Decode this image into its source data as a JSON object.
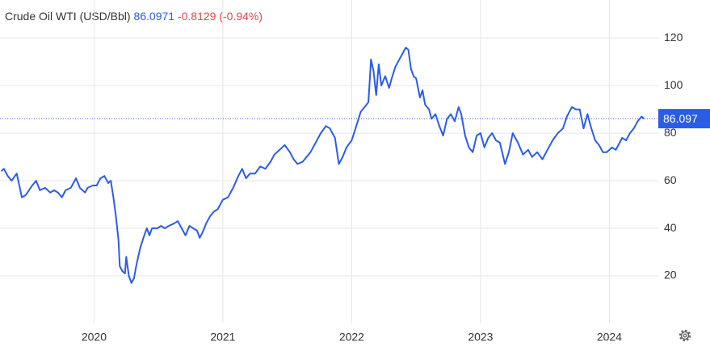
{
  "chart_data": {
    "type": "line",
    "title": "Crude Oil WTI (USD/Bbl)",
    "price": 86.0971,
    "change": -0.8129,
    "change_pct": {
      "value": -0.94,
      "label": "(-0.94%)"
    },
    "price_tag": {
      "value": 86.0971,
      "label": "86.097"
    },
    "color": "#2b5ce6",
    "x": [
      2019.28,
      2019.3,
      2019.33,
      2019.36,
      2019.4,
      2019.44,
      2019.47,
      2019.52,
      2019.55,
      2019.58,
      2019.62,
      2019.66,
      2019.69,
      2019.72,
      2019.75,
      2019.78,
      2019.82,
      2019.86,
      2019.89,
      2019.93,
      2019.95,
      2019.99,
      2020.02,
      2020.05,
      2020.08,
      2020.11,
      2020.13,
      2020.15,
      2020.17,
      2020.19,
      2020.2,
      2020.22,
      2020.24,
      2020.25,
      2020.27,
      2020.29,
      2020.31,
      2020.33,
      2020.36,
      2020.39,
      2020.41,
      2020.43,
      2020.45,
      2020.49,
      2020.52,
      2020.55,
      2020.58,
      2020.62,
      2020.65,
      2020.68,
      2020.71,
      2020.74,
      2020.77,
      2020.8,
      2020.82,
      2020.84,
      2020.87,
      2020.9,
      2020.93,
      2020.96,
      2021.0,
      2021.04,
      2021.08,
      2021.12,
      2021.15,
      2021.18,
      2021.21,
      2021.25,
      2021.29,
      2021.33,
      2021.37,
      2021.4,
      2021.44,
      2021.48,
      2021.52,
      2021.55,
      2021.58,
      2021.62,
      2021.65,
      2021.68,
      2021.72,
      2021.76,
      2021.8,
      2021.83,
      2021.87,
      2021.9,
      2021.93,
      2021.96,
      2022.0,
      2022.03,
      2022.07,
      2022.1,
      2022.13,
      2022.15,
      2022.17,
      2022.19,
      2022.21,
      2022.23,
      2022.26,
      2022.29,
      2022.31,
      2022.34,
      2022.37,
      2022.4,
      2022.42,
      2022.44,
      2022.46,
      2022.48,
      2022.5,
      2022.53,
      2022.55,
      2022.57,
      2022.6,
      2022.62,
      2022.65,
      2022.68,
      2022.71,
      2022.74,
      2022.77,
      2022.8,
      2022.83,
      2022.85,
      2022.88,
      2022.91,
      2022.94,
      2022.97,
      2023.0,
      2023.03,
      2023.06,
      2023.09,
      2023.12,
      2023.15,
      2023.19,
      2023.22,
      2023.25,
      2023.29,
      2023.33,
      2023.37,
      2023.4,
      2023.44,
      2023.48,
      2023.52,
      2023.56,
      2023.6,
      2023.64,
      2023.67,
      2023.71,
      2023.74,
      2023.77,
      2023.8,
      2023.83,
      2023.86,
      2023.89,
      2023.92,
      2023.95,
      2023.98,
      2024.02,
      2024.05,
      2024.08,
      2024.1,
      2024.13,
      2024.16,
      2024.19,
      2024.22,
      2024.25,
      2024.27
    ],
    "values": [
      64,
      65,
      62,
      60,
      63,
      53,
      54,
      58,
      60,
      56,
      57,
      55,
      56,
      55,
      53,
      56,
      57,
      61,
      57,
      55,
      57,
      58,
      58,
      61,
      62,
      59,
      60,
      53,
      45,
      35,
      24,
      22,
      21,
      28,
      20,
      17,
      19,
      25,
      32,
      37,
      40,
      37,
      40,
      40,
      41,
      40,
      41,
      42,
      43,
      40,
      37,
      41,
      40,
      39,
      36,
      38,
      42,
      45,
      47,
      48,
      52,
      53,
      57,
      62,
      65,
      61,
      63,
      63,
      66,
      65,
      68,
      71,
      73,
      75,
      72,
      69,
      67,
      68,
      70,
      72,
      76,
      80,
      83,
      82,
      78,
      67,
      70,
      74,
      77,
      82,
      89,
      91,
      93,
      111,
      106,
      96,
      109,
      100,
      104,
      99,
      103,
      108,
      111,
      114,
      116,
      115,
      107,
      104,
      103,
      95,
      98,
      92,
      90,
      86,
      88,
      83,
      79,
      86,
      88,
      85,
      91,
      88,
      79,
      74,
      72,
      79,
      80,
      74,
      78,
      80,
      77,
      76,
      67,
      72,
      80,
      76,
      71,
      73,
      70,
      72,
      69,
      73,
      77,
      80,
      82,
      87,
      91,
      90,
      90,
      82,
      88,
      82,
      77,
      75,
      72,
      72,
      74,
      73,
      76,
      78,
      77,
      80,
      82,
      85,
      87,
      86.0971
    ],
    "xlim": [
      2019.27,
      2024.38
    ],
    "xticks": [
      2020,
      2021,
      2022,
      2023,
      2024
    ],
    "ylim": [
      0,
      136
    ],
    "yticks": [
      20,
      40,
      60,
      80,
      100,
      120
    ],
    "grid": true
  }
}
